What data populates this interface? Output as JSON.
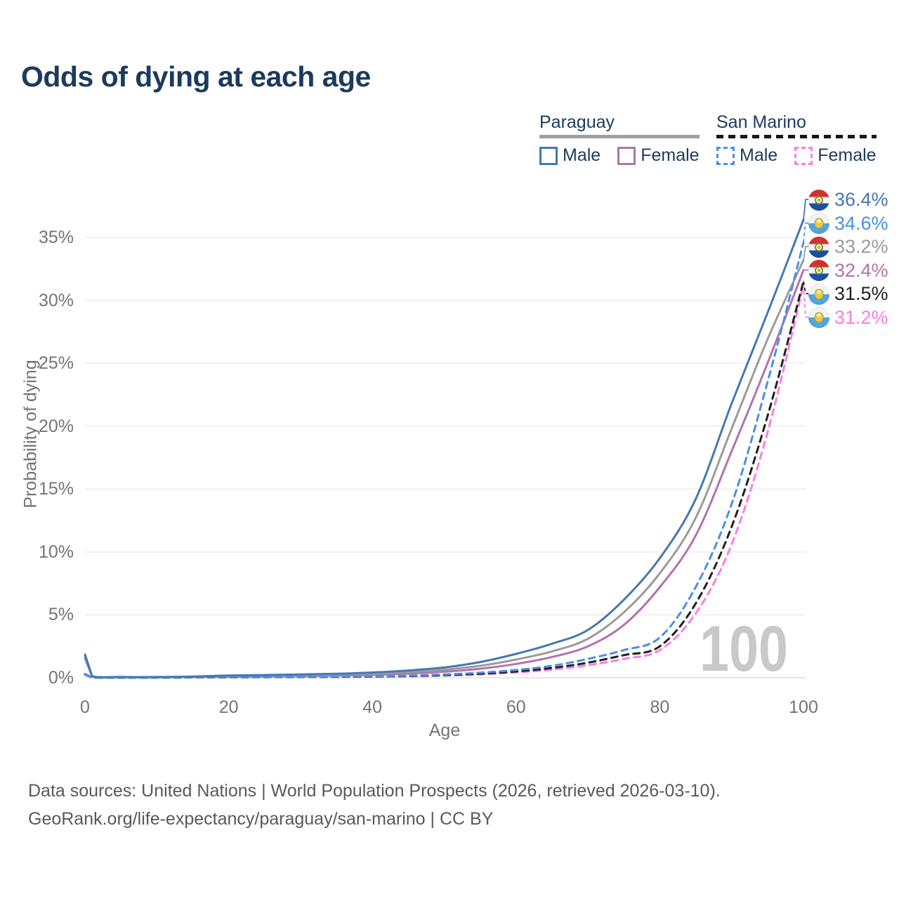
{
  "title": "Odds of dying at each age",
  "watermark": "100",
  "legend": {
    "groups": [
      {
        "name": "Paraguay",
        "line_style": "solid",
        "underline_color": "#a0a0a0",
        "items": [
          {
            "label": "Male",
            "color": "#4577b6"
          },
          {
            "label": "Female",
            "color": "#b173ae"
          }
        ]
      },
      {
        "name": "San Marino",
        "line_style": "dashed",
        "underline_color": "#161616",
        "items": [
          {
            "label": "Male",
            "color": "#4a90e2"
          },
          {
            "label": "Female",
            "color": "#fb7ce8"
          }
        ]
      }
    ]
  },
  "chart_data": {
    "type": "line",
    "title": "Odds of dying at each age",
    "xlabel": "Age",
    "ylabel": "Probability of dying",
    "xlim": [
      0,
      100
    ],
    "ylim": [
      0,
      37
    ],
    "grid": "horizontal",
    "legend_position": "top-right",
    "x_tick_values": [
      0,
      20,
      40,
      60,
      80,
      100
    ],
    "x_tick_labels": [
      "0",
      "20",
      "40",
      "60",
      "80",
      "100"
    ],
    "y_tick_values": [
      0,
      5,
      10,
      15,
      20,
      25,
      30,
      35
    ],
    "y_tick_labels": [
      "0%",
      "5%",
      "10%",
      "15%",
      "20%",
      "25%",
      "30%",
      "35%"
    ],
    "ages": [
      0,
      1,
      5,
      10,
      15,
      20,
      25,
      30,
      35,
      40,
      45,
      50,
      55,
      60,
      65,
      70,
      75,
      80,
      85,
      90,
      95,
      100
    ],
    "series": [
      {
        "id": "paraguay-male",
        "name": "Paraguay Male",
        "country": "Paraguay",
        "flag": "paraguay",
        "color": "#4577b6",
        "line_style": "solid",
        "end_label": "36.4%",
        "values_pct": [
          1.85,
          0.12,
          0.06,
          0.06,
          0.1,
          0.18,
          0.22,
          0.26,
          0.32,
          0.42,
          0.58,
          0.82,
          1.25,
          1.9,
          2.7,
          3.8,
          6.2,
          9.5,
          14.2,
          21.8,
          29.0,
          36.4
        ]
      },
      {
        "id": "san-marino-male",
        "name": "San Marino Male",
        "country": "San Marino",
        "flag": "san-marino",
        "color": "#4a90e2",
        "line_style": "dashed",
        "end_label": "34.6%",
        "values_pct": [
          0.3,
          0.02,
          0.01,
          0.01,
          0.03,
          0.05,
          0.06,
          0.07,
          0.09,
          0.12,
          0.17,
          0.26,
          0.4,
          0.62,
          0.95,
          1.5,
          2.2,
          3.2,
          7.2,
          13.8,
          23.5,
          34.6
        ]
      },
      {
        "id": "paraguay-combined",
        "name": "Paraguay (combined)",
        "country": "Paraguay",
        "flag": "paraguay",
        "color": "#9b9b9b",
        "line_style": "solid",
        "end_label": "33.2%",
        "values_pct": [
          1.7,
          0.11,
          0.05,
          0.05,
          0.08,
          0.13,
          0.16,
          0.19,
          0.24,
          0.32,
          0.45,
          0.64,
          0.95,
          1.45,
          2.1,
          3.1,
          5.2,
          8.3,
          12.7,
          19.8,
          26.9,
          33.2
        ]
      },
      {
        "id": "paraguay-female",
        "name": "Paraguay Female",
        "country": "Paraguay",
        "flag": "paraguay",
        "color": "#b173ae",
        "line_style": "solid",
        "end_label": "32.4%",
        "values_pct": [
          1.55,
          0.1,
          0.04,
          0.04,
          0.06,
          0.08,
          0.1,
          0.13,
          0.17,
          0.23,
          0.33,
          0.48,
          0.72,
          1.1,
          1.65,
          2.5,
          4.2,
          7.2,
          11.3,
          18.0,
          25.0,
          32.4
        ]
      },
      {
        "id": "san-marino-combined",
        "name": "San Marino (combined)",
        "country": "San Marino",
        "flag": "san-marino",
        "color": "#1f1f1f",
        "line_style": "dashed",
        "end_label": "31.5%",
        "values_pct": [
          0.27,
          0.02,
          0.01,
          0.01,
          0.02,
          0.04,
          0.05,
          0.06,
          0.07,
          0.1,
          0.14,
          0.21,
          0.32,
          0.5,
          0.78,
          1.2,
          1.8,
          2.5,
          5.9,
          12.0,
          20.8,
          31.5
        ]
      },
      {
        "id": "san-marino-female",
        "name": "San Marino Female",
        "country": "San Marino",
        "flag": "san-marino",
        "color": "#fb7ce8",
        "line_style": "dashed",
        "end_label": "31.2%",
        "values_pct": [
          0.25,
          0.02,
          0.01,
          0.01,
          0.02,
          0.03,
          0.04,
          0.05,
          0.06,
          0.08,
          0.12,
          0.18,
          0.27,
          0.42,
          0.65,
          1.0,
          1.5,
          2.2,
          5.1,
          10.6,
          19.5,
          31.2
        ]
      }
    ]
  },
  "footer": {
    "line1": "Data sources: United Nations | World Population Prospects (2026, retrieved 2026-03-10).",
    "line2": "GeoRank.org/life-expectancy/paraguay/san-marino | CC BY"
  }
}
